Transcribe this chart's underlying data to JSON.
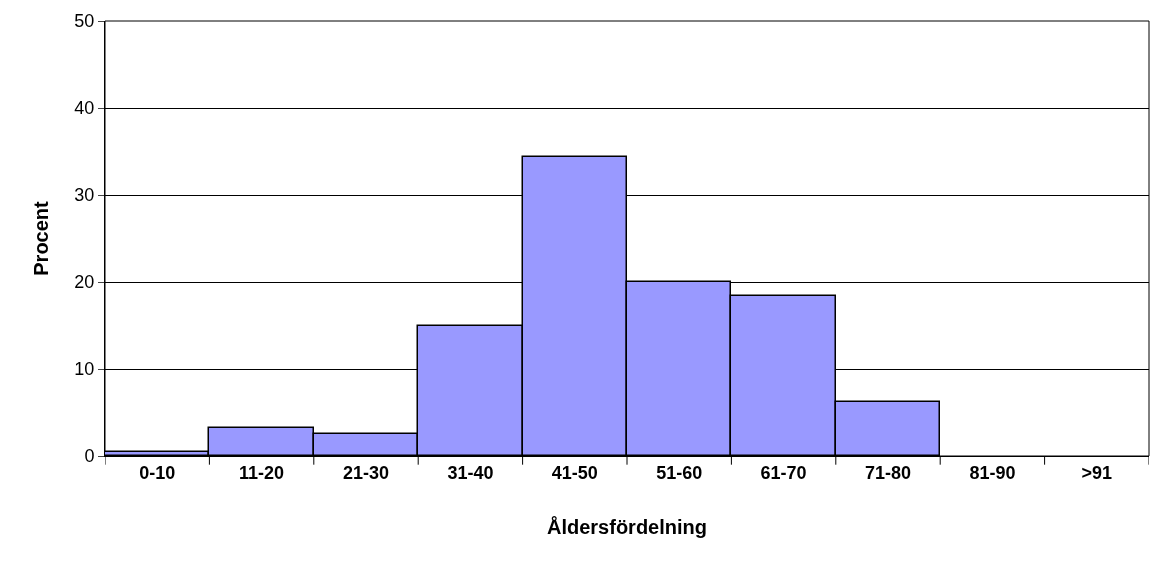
{
  "chart_data": {
    "type": "bar",
    "xlabel": "Åldersfördelning",
    "ylabel": "Procent",
    "categories": [
      "0-10",
      "11-20",
      "21-30",
      "31-40",
      "41-50",
      "51-60",
      "61-70",
      "71-80",
      "81-90",
      ">91"
    ],
    "values": [
      0.5,
      3.2,
      2.5,
      14.9,
      34.4,
      20.0,
      18.4,
      6.2,
      0,
      0
    ],
    "color": "#9999ff",
    "ylim": [
      0,
      50
    ],
    "yticks": [
      0,
      10,
      20,
      30,
      40,
      50
    ],
    "grid": "y",
    "legend": false
  }
}
